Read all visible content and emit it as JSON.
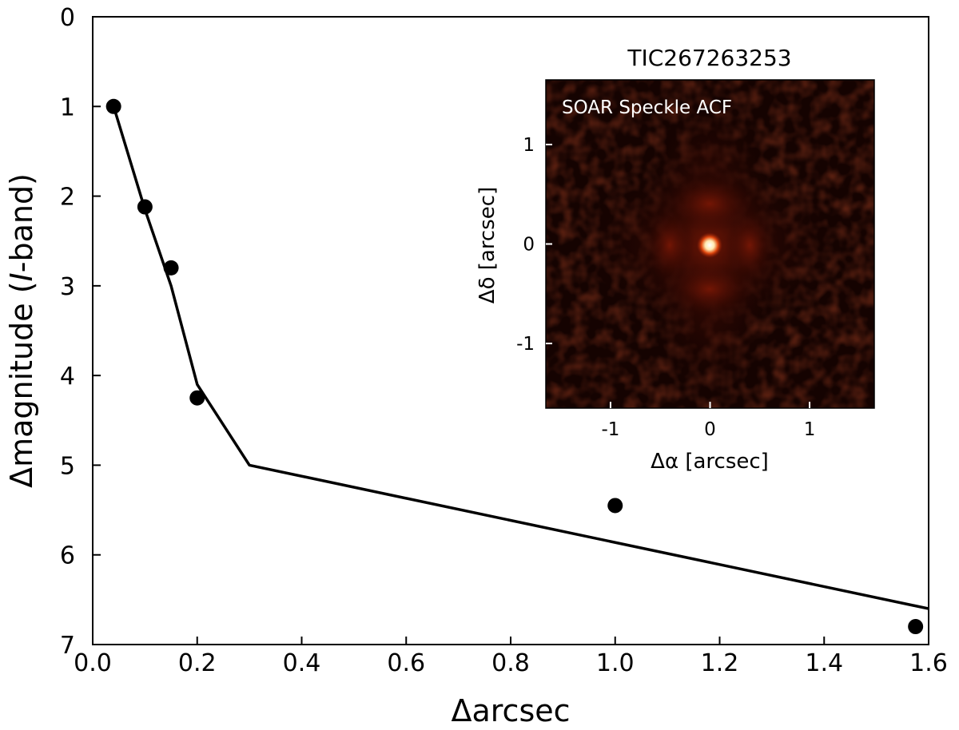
{
  "chart_data": [
    {
      "type": "line",
      "xlabel": "Δarcsec",
      "ylabel_prefix": "Δmagnitude (",
      "ylabel_italic": "I",
      "ylabel_suffix": "-band)",
      "xlim": [
        0.0,
        1.6
      ],
      "ylim": [
        7,
        0
      ],
      "y_inverted": true,
      "xticks": [
        "0.0",
        "0.2",
        "0.4",
        "0.6",
        "0.8",
        "1.0",
        "1.2",
        "1.4",
        "1.6"
      ],
      "yticks": [
        "0",
        "1",
        "2",
        "3",
        "4",
        "5",
        "6",
        "7"
      ],
      "grid": false,
      "series": [
        {
          "kind": "line",
          "x": [
            0.04,
            0.1,
            0.15,
            0.2,
            0.3,
            1.6
          ],
          "y": [
            1.0,
            2.15,
            3.0,
            4.1,
            5.0,
            6.6
          ],
          "color": "#000000"
        },
        {
          "kind": "scatter",
          "x": [
            0.04,
            0.1,
            0.15,
            0.2,
            1.0,
            1.575
          ],
          "y": [
            1.0,
            2.12,
            2.8,
            4.25,
            5.45,
            6.8
          ],
          "color": "#000000"
        }
      ]
    },
    {
      "type": "heatmap",
      "title": "TIC267263253",
      "annotation": "SOAR Speckle ACF",
      "xlabel": "Δα [arcsec]",
      "ylabel": "Δδ [arcsec]",
      "xlim": [
        -1.65,
        1.65
      ],
      "ylim": [
        -1.65,
        1.65
      ],
      "xticks": [
        "-1",
        "0",
        "1"
      ],
      "yticks": [
        "1",
        "0",
        "-1"
      ],
      "colormap": [
        "#000000",
        "#3a0a03",
        "#8b1a05",
        "#e0480e",
        "#ffd27a",
        "#ffffff"
      ],
      "peak": {
        "x": 0,
        "y": 0
      }
    }
  ]
}
